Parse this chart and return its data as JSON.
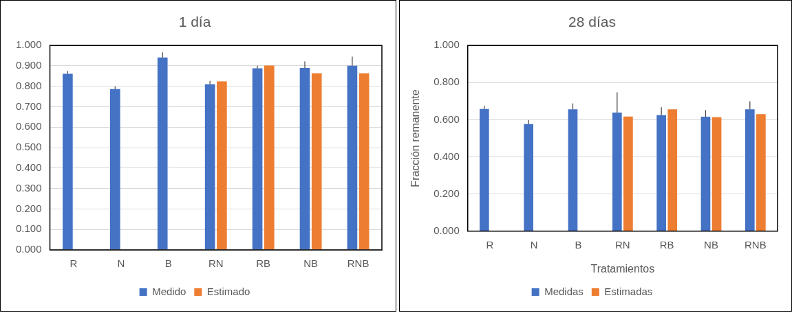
{
  "chart_data": [
    {
      "type": "bar",
      "title": "1 día",
      "categories": [
        "R",
        "N",
        "B",
        "RN",
        "RB",
        "NB",
        "RNB"
      ],
      "series": [
        {
          "name": "Medido",
          "color": "#4472c4",
          "values": [
            0.861,
            0.787,
            0.941,
            0.81,
            0.888,
            0.89,
            0.901
          ],
          "errors": [
            [
              0.861,
              0.875
            ],
            [
              0.787,
              0.799
            ],
            [
              0.941,
              0.966
            ],
            [
              0.81,
              0.827
            ],
            [
              0.888,
              0.901
            ],
            [
              0.89,
              0.922
            ],
            [
              0.901,
              0.945
            ]
          ]
        },
        {
          "name": "Estimado",
          "color": "#ed7d31",
          "values": [
            null,
            null,
            null,
            0.824,
            0.902,
            0.864,
            0.864
          ]
        }
      ],
      "ylim": [
        0,
        1
      ],
      "yticks": [
        {
          "value": 0,
          "label": "0.000"
        },
        {
          "value": 0.1,
          "label": "0.100"
        },
        {
          "value": 0.2,
          "label": "0.200"
        },
        {
          "value": 0.3,
          "label": "0.300"
        },
        {
          "value": 0.4,
          "label": "0.400"
        },
        {
          "value": 0.5,
          "label": "0.500"
        },
        {
          "value": 0.6,
          "label": "0.600"
        },
        {
          "value": 0.7,
          "label": "0.700"
        },
        {
          "value": 0.8,
          "label": "0.800"
        },
        {
          "value": 0.9,
          "label": "0.900"
        },
        {
          "value": 1,
          "label": "1.000"
        }
      ],
      "grid": "y",
      "legend": "bottom"
    },
    {
      "type": "bar",
      "title": "28 días",
      "xlabel": "Tratamientos",
      "ylabel": "Fracción remanente",
      "categories": [
        "R",
        "N",
        "B",
        "RN",
        "RB",
        "NB",
        "RNB"
      ],
      "series": [
        {
          "name": "Medidas",
          "color": "#4472c4",
          "values": [
            0.658,
            0.577,
            0.656,
            0.639,
            0.625,
            0.616,
            0.656
          ],
          "errors": [
            [
              0.658,
              0.675
            ],
            [
              0.577,
              0.598
            ],
            [
              0.656,
              0.688
            ],
            [
              0.639,
              0.748
            ],
            [
              0.625,
              0.667
            ],
            [
              0.616,
              0.652
            ],
            [
              0.656,
              0.7
            ]
          ]
        },
        {
          "name": "Estimadas",
          "color": "#ed7d31",
          "values": [
            null,
            null,
            null,
            0.617,
            0.656,
            0.614,
            0.63
          ]
        }
      ],
      "ylim": [
        0,
        1
      ],
      "yticks": [
        {
          "value": 0,
          "label": "0.000"
        },
        {
          "value": 0.2,
          "label": "0.200"
        },
        {
          "value": 0.4,
          "label": "0.400"
        },
        {
          "value": 0.6,
          "label": "0.600"
        },
        {
          "value": 0.8,
          "label": "0.800"
        },
        {
          "value": 1,
          "label": "1.000"
        }
      ],
      "grid": "y",
      "legend": "bottom"
    }
  ]
}
